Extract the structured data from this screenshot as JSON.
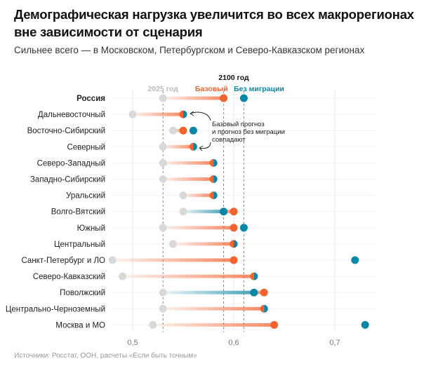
{
  "title_line1": "Демографическая нагрузка увеличится во всех макрорегионах",
  "title_line2": "вне зависимости от сценария",
  "subtitle": "Сильнее всего — в Московском, Петербургском и Северо-Кавказском регионах",
  "source": "Источники: Росстат, ООН, расчеты «Если быть точным»",
  "colors": {
    "base": "#f4622e",
    "nomig": "#0a87a6",
    "y2025": "#d9d9d9"
  },
  "chart_data": {
    "type": "dumbbell",
    "legend": {
      "group": "2100 год",
      "y2025": "2025 год",
      "base": "Базовый",
      "nomig": "Без миграции"
    },
    "annotation": [
      "Базовый прогноз",
      "и прогноз без миграции",
      "совпадают"
    ],
    "xlim": [
      0.47,
      0.75
    ],
    "xticks": [
      0.5,
      0.6,
      0.7
    ],
    "xtick_labels": [
      "0,5",
      "0,6",
      "0,7"
    ],
    "reference_lines": [
      0.53,
      0.59,
      0.61
    ],
    "categories": [
      "Россия",
      "Дальневосточный",
      "Восточно-Сибирский",
      "Северный",
      "Северо-Западный",
      "Западно-Сибирский",
      "Уральский",
      "Волго-Вятский",
      "Южный",
      "Центральный",
      "Санкт-Петербург и ЛО",
      "Северо-Кавказский",
      "Поволжский",
      "Центрально-Черноземный",
      "Москва и МО"
    ],
    "series": [
      {
        "name": "2025 год",
        "values": [
          0.53,
          0.5,
          0.54,
          0.53,
          0.53,
          0.53,
          0.55,
          0.55,
          0.53,
          0.54,
          0.48,
          0.49,
          0.53,
          0.53,
          0.52
        ]
      },
      {
        "name": "Базовый",
        "values": [
          0.59,
          0.55,
          0.55,
          0.56,
          0.58,
          0.58,
          0.58,
          0.6,
          0.6,
          0.6,
          0.6,
          0.62,
          0.63,
          0.63,
          0.64
        ]
      },
      {
        "name": "Без миграции",
        "values": [
          0.61,
          0.55,
          0.56,
          0.56,
          0.58,
          0.58,
          0.58,
          0.59,
          0.61,
          0.6,
          0.72,
          0.62,
          0.62,
          0.63,
          0.73
        ]
      }
    ]
  }
}
